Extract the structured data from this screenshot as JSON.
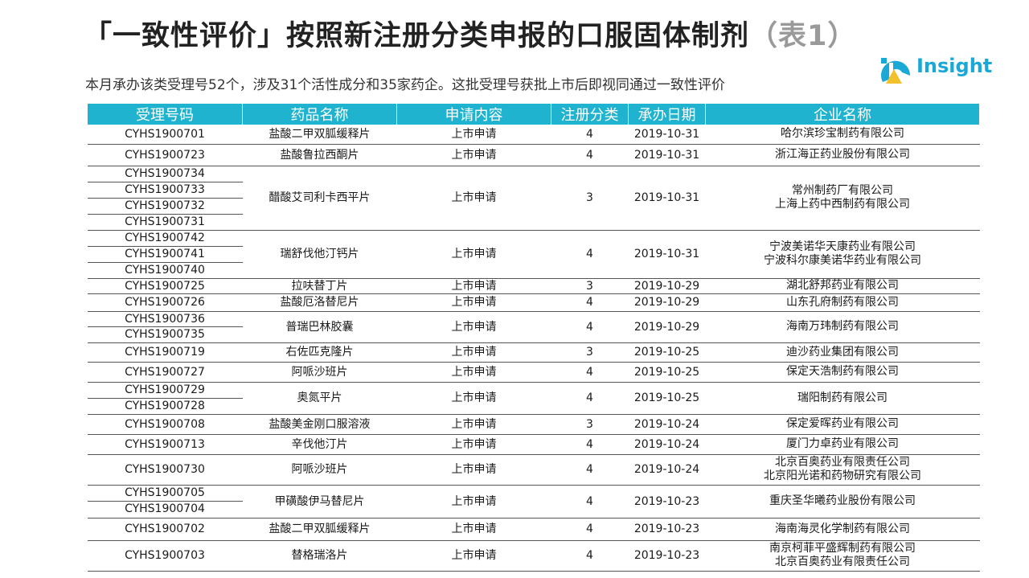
{
  "title": "「一致性评价」按照新注册分类申报的口服固体制剂",
  "title_suffix": "（表1）",
  "subtitle": "本月承办该类受理号52个，涉及31个活性成分和35家药企。这批受理号获批上市后即视同通过一致性评价",
  "logo": {
    "text": "Insight"
  },
  "colors": {
    "header_bg": "#1fb3cf",
    "logo_blue": "#1aa9d6",
    "logo_yellow": "#f2c12e"
  },
  "table": {
    "headers": [
      "受理号码",
      "药品名称",
      "申请内容",
      "注册分类",
      "承办日期",
      "企业名称"
    ],
    "rows": [
      {
        "ids": [
          "CYHS1900701"
        ],
        "drug": "盐酸二甲双胍缓释片",
        "app": "上市申请",
        "cls": "4",
        "date": "2019-10-31",
        "companies": [
          "哈尔滨珍宝制药有限公司"
        ]
      },
      {
        "ids": [
          "CYHS1900723"
        ],
        "drug": "盐酸鲁拉西酮片",
        "app": "上市申请",
        "cls": "4",
        "date": "2019-10-31",
        "companies": [
          "浙江海正药业股份有限公司"
        ]
      },
      {
        "ids": [
          "CYHS1900734",
          "CYHS1900733",
          "CYHS1900732",
          "CYHS1900731"
        ],
        "drug": "醋酸艾司利卡西平片",
        "app": "上市申请",
        "cls": "3",
        "date": "2019-10-31",
        "companies": [
          "常州制药厂有限公司",
          "上海上药中西制药有限公司"
        ]
      },
      {
        "ids": [
          "CYHS1900742",
          "CYHS1900741",
          "CYHS1900740"
        ],
        "drug": "瑞舒伐他汀钙片",
        "app": "上市申请",
        "cls": "4",
        "date": "2019-10-31",
        "companies": [
          "宁波美诺华天康药业有限公司",
          "宁波科尔康美诺华药业有限公司"
        ]
      },
      {
        "ids": [
          "CYHS1900725"
        ],
        "drug": "拉呋替丁片",
        "app": "上市申请",
        "cls": "3",
        "date": "2019-10-29",
        "companies": [
          "湖北舒邦药业有限公司"
        ]
      },
      {
        "ids": [
          "CYHS1900726"
        ],
        "drug": "盐酸厄洛替尼片",
        "app": "上市申请",
        "cls": "4",
        "date": "2019-10-29",
        "companies": [
          "山东孔府制药有限公司"
        ]
      },
      {
        "ids": [
          "CYHS1900736",
          "CYHS1900735"
        ],
        "drug": "普瑞巴林胶囊",
        "app": "上市申请",
        "cls": "4",
        "date": "2019-10-29",
        "companies": [
          "海南万玮制药有限公司"
        ]
      },
      {
        "ids": [
          "CYHS1900719"
        ],
        "drug": "右佐匹克隆片",
        "app": "上市申请",
        "cls": "3",
        "date": "2019-10-25",
        "companies": [
          "迪沙药业集团有限公司"
        ]
      },
      {
        "ids": [
          "CYHS1900727"
        ],
        "drug": "阿哌沙班片",
        "app": "上市申请",
        "cls": "4",
        "date": "2019-10-25",
        "companies": [
          "保定天浩制药有限公司"
        ]
      },
      {
        "ids": [
          "CYHS1900729",
          "CYHS1900728"
        ],
        "drug": "奥氮平片",
        "app": "上市申请",
        "cls": "4",
        "date": "2019-10-25",
        "companies": [
          "瑞阳制药有限公司"
        ]
      },
      {
        "ids": [
          "CYHS1900708"
        ],
        "drug": "盐酸美金刚口服溶液",
        "app": "上市申请",
        "cls": "3",
        "date": "2019-10-24",
        "companies": [
          "保定爱晖药业有限公司"
        ]
      },
      {
        "ids": [
          "CYHS1900713"
        ],
        "drug": "辛伐他汀片",
        "app": "上市申请",
        "cls": "4",
        "date": "2019-10-24",
        "companies": [
          "厦门力卓药业有限公司"
        ]
      },
      {
        "ids": [
          "CYHS1900730"
        ],
        "drug": "阿哌沙班片",
        "app": "上市申请",
        "cls": "4",
        "date": "2019-10-24",
        "companies": [
          "北京百奥药业有限责任公司",
          "北京阳光诺和药物研究有限公司"
        ]
      },
      {
        "ids": [
          "CYHS1900705",
          "CYHS1900704"
        ],
        "drug": "甲磺酸伊马替尼片",
        "app": "上市申请",
        "cls": "4",
        "date": "2019-10-23",
        "companies": [
          "重庆圣华曦药业股份有限公司"
        ]
      },
      {
        "ids": [
          "CYHS1900702"
        ],
        "drug": "盐酸二甲双胍缓释片",
        "app": "上市申请",
        "cls": "4",
        "date": "2019-10-23",
        "companies": [
          "海南海灵化学制药有限公司"
        ]
      },
      {
        "ids": [
          "CYHS1900703"
        ],
        "drug": "替格瑞洛片",
        "app": "上市申请",
        "cls": "4",
        "date": "2019-10-23",
        "companies": [
          "南京柯菲平盛辉制药有限公司",
          "北京百奥药业有限责任公司"
        ]
      }
    ]
  }
}
